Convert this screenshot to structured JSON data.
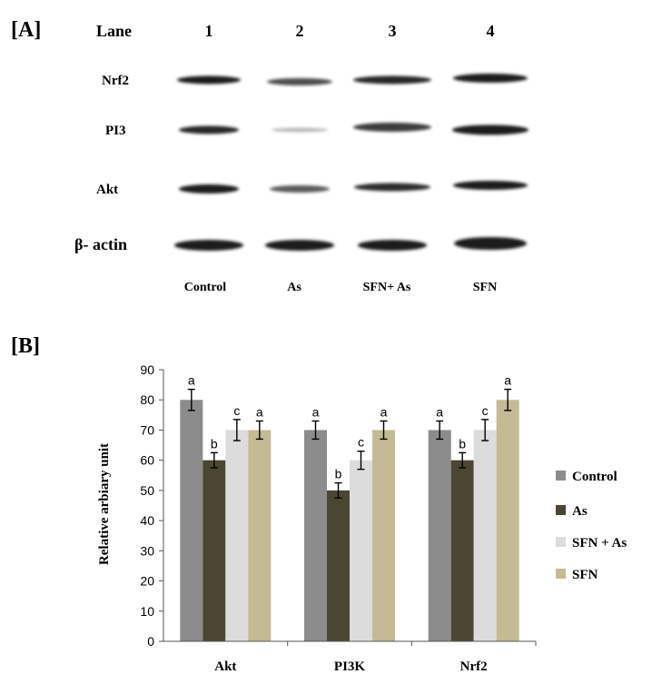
{
  "panel_a": {
    "label": "[A]",
    "lane_header": "Lane",
    "lane_numbers": [
      "1",
      "2",
      "3",
      "4"
    ],
    "proteins": [
      "Nrf2",
      "PI3",
      "Akt",
      "β- actin"
    ],
    "conditions": [
      "Control",
      "As",
      "SFN+ As",
      "SFN"
    ],
    "band_color": "#1a1a1a"
  },
  "panel_b": {
    "label": "[B]"
  },
  "chart_data": {
    "type": "bar",
    "categories": [
      "Akt",
      "PI3K",
      "Nrf2"
    ],
    "ylabel": "Relative arbiary unit",
    "ylim": [
      0,
      90
    ],
    "yticks": [
      0,
      10,
      20,
      30,
      40,
      50,
      60,
      70,
      80,
      90
    ],
    "grid": false,
    "legend_position": "right",
    "series": [
      {
        "name": "Control",
        "color": "#8c8c8c",
        "values": [
          80,
          70,
          70
        ],
        "errors": [
          3.5,
          3,
          3
        ],
        "letters": [
          "a",
          "a",
          "a"
        ]
      },
      {
        "name": "As",
        "color": "#4a4632",
        "values": [
          60,
          50,
          60
        ],
        "errors": [
          2.5,
          2.5,
          2.5
        ],
        "letters": [
          "b",
          "b",
          "b"
        ]
      },
      {
        "name": "SFN + As",
        "color": "#dcdcdc",
        "values": [
          70,
          60,
          70
        ],
        "errors": [
          3.5,
          3,
          3.5
        ],
        "letters": [
          "c",
          "c",
          "c"
        ]
      },
      {
        "name": "SFN",
        "color": "#c4bb94",
        "values": [
          70,
          70,
          80
        ],
        "errors": [
          3,
          3,
          3.5
        ],
        "letters": [
          "a",
          "a",
          "a"
        ]
      }
    ]
  }
}
